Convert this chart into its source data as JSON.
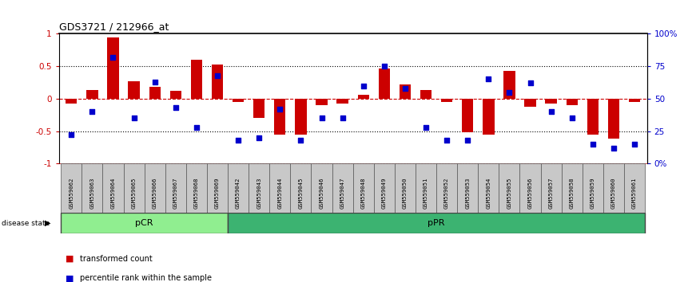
{
  "title": "GDS3721 / 212966_at",
  "samples": [
    "GSM559062",
    "GSM559063",
    "GSM559064",
    "GSM559065",
    "GSM559066",
    "GSM559067",
    "GSM559068",
    "GSM559069",
    "GSM559042",
    "GSM559043",
    "GSM559044",
    "GSM559045",
    "GSM559046",
    "GSM559047",
    "GSM559048",
    "GSM559049",
    "GSM559050",
    "GSM559051",
    "GSM559052",
    "GSM559053",
    "GSM559054",
    "GSM559055",
    "GSM559056",
    "GSM559057",
    "GSM559058",
    "GSM559059",
    "GSM559060",
    "GSM559061"
  ],
  "bar_values": [
    -0.08,
    0.13,
    0.95,
    0.27,
    0.18,
    0.12,
    0.6,
    0.53,
    -0.05,
    -0.3,
    -0.55,
    -0.55,
    -0.1,
    -0.08,
    0.06,
    0.47,
    0.22,
    0.13,
    -0.05,
    -0.52,
    -0.55,
    0.43,
    -0.12,
    -0.08,
    -0.1,
    -0.55,
    -0.62,
    -0.05
  ],
  "percentile_values": [
    0.22,
    0.4,
    0.82,
    0.35,
    0.63,
    0.43,
    0.28,
    0.68,
    0.18,
    0.2,
    0.42,
    0.18,
    0.35,
    0.35,
    0.6,
    0.75,
    0.58,
    0.28,
    0.18,
    0.18,
    0.65,
    0.55,
    0.62,
    0.4,
    0.35,
    0.15,
    0.12,
    0.15
  ],
  "pcr_count": 8,
  "ppr_count": 20,
  "ylim": [
    -1.0,
    1.0
  ],
  "yticks": [
    -1.0,
    -0.5,
    0.0,
    0.5,
    1.0
  ],
  "ytick_labels": [
    "-1",
    "-0.5",
    "0",
    "0.5",
    "1"
  ],
  "right_yticks": [
    0.0,
    0.25,
    0.5,
    0.75,
    1.0
  ],
  "right_ytick_labels": [
    "0%",
    "25",
    "50",
    "75",
    "100%"
  ],
  "bar_color": "#CC0000",
  "dot_color": "#0000CC",
  "pcr_color": "#90EE90",
  "ppr_color": "#3CB371",
  "pcr_label": "pCR",
  "ppr_label": "pPR",
  "disease_state_label": "disease state",
  "legend_bar_label": "transformed count",
  "legend_dot_label": "percentile rank within the sample",
  "hline_color": "#CC0000",
  "dotted_color": "black"
}
